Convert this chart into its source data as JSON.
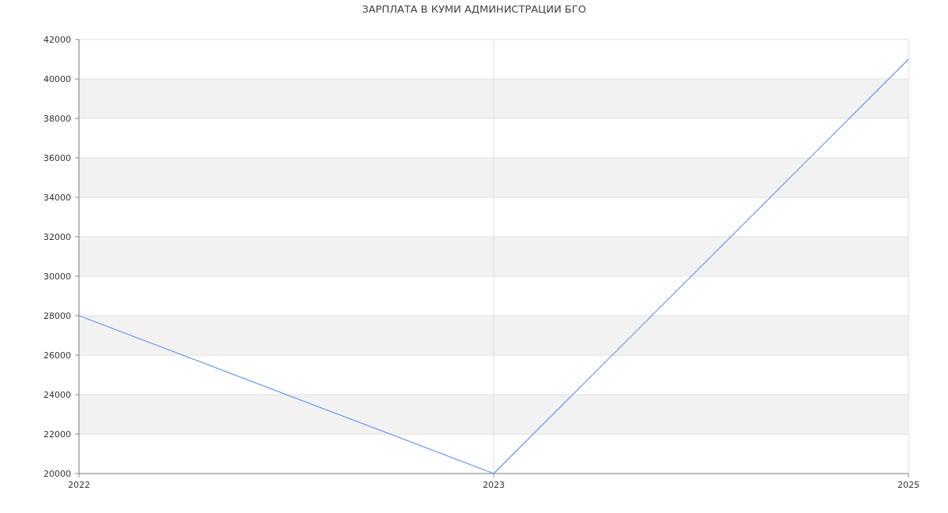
{
  "chart_data": {
    "type": "line",
    "title": "ЗАРПЛАТА В КУМИ АДМИНИСТРАЦИИ БГО",
    "categories": [
      "2022",
      "2023",
      "2025"
    ],
    "series": [
      {
        "color": "#6495ed",
        "values": [
          28000,
          20000,
          41000
        ]
      }
    ],
    "ylim": [
      20000,
      42000
    ],
    "yticks": [
      20000,
      22000,
      24000,
      26000,
      28000,
      30000,
      32000,
      34000,
      36000,
      38000,
      40000,
      42000
    ],
    "grid": true,
    "marker": "none",
    "line_style": "solid"
  }
}
